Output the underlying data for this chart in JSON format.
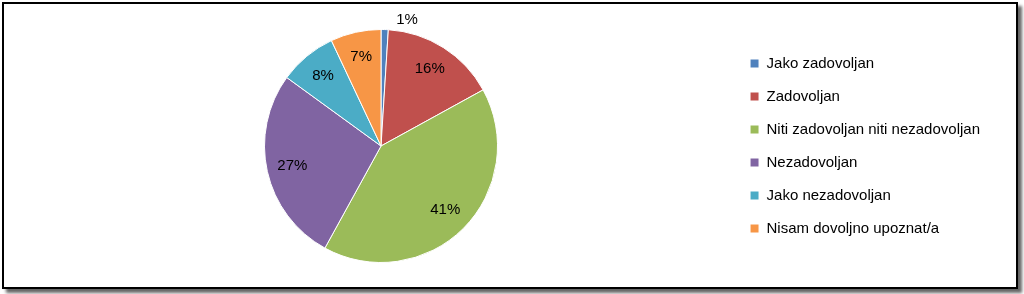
{
  "chart_data": {
    "type": "pie",
    "categories": [
      "Jako zadovoljan",
      "Zadovoljan",
      "Niti zadovoljan niti nezadovoljan",
      "Nezadovoljan",
      "Jako nezadovoljan",
      "Nisam dovoljno upoznat/a"
    ],
    "values": [
      1,
      16,
      41,
      27,
      8,
      7
    ],
    "colors": [
      "#4f81bd",
      "#c0504d",
      "#9bbb59",
      "#8064a2",
      "#4bacc6",
      "#f79646"
    ],
    "value_labels": [
      "1%",
      "16%",
      "41%",
      "27%",
      "8%",
      "7%"
    ],
    "legend": "right"
  }
}
